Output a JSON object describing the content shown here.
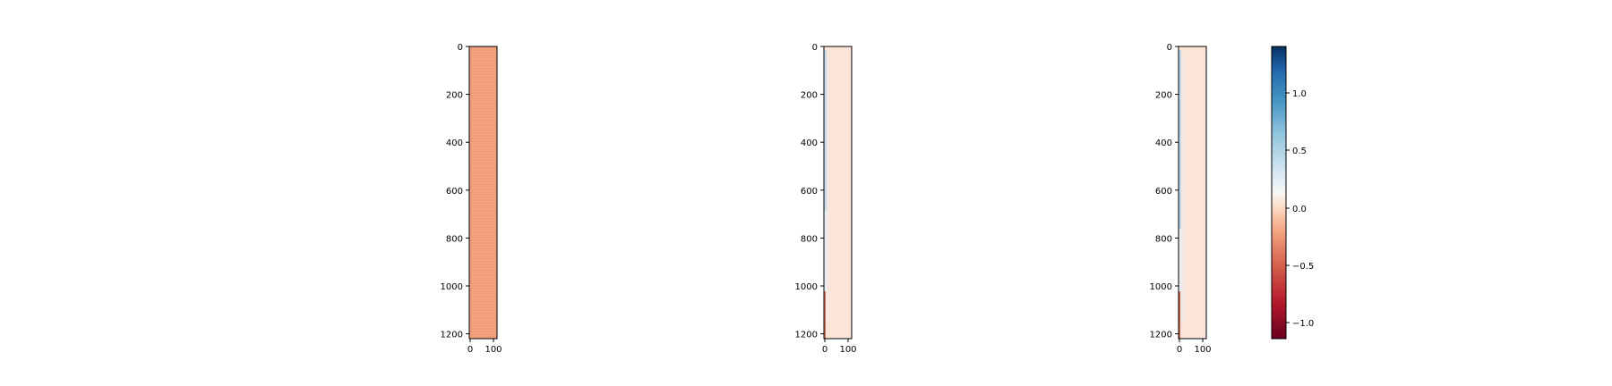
{
  "chart_data": [
    {
      "type": "heatmap",
      "panel": "left",
      "xlim": [
        0,
        120
      ],
      "ylim": [
        1220,
        0
      ],
      "xticks": [
        "0",
        "100"
      ],
      "yticks": [
        "0",
        "200",
        "400",
        "600",
        "800",
        "1000",
        "1200"
      ],
      "fill_value_estimate": -0.4,
      "description_values": "nearly uniform field with faint horizontal banding"
    },
    {
      "type": "heatmap",
      "panel": "middle",
      "xlim": [
        0,
        120
      ],
      "ylim": [
        1220,
        0
      ],
      "xticks": [
        "0",
        "100"
      ],
      "yticks": [
        "0",
        "200",
        "400",
        "600",
        "800",
        "1000",
        "1200"
      ],
      "fill_value_estimate": -0.08,
      "left_edge_values": [
        0.15,
        0.1,
        0.05,
        -0.2,
        -0.5
      ]
    },
    {
      "type": "heatmap",
      "panel": "right",
      "xlim": [
        0,
        120
      ],
      "ylim": [
        1220,
        0
      ],
      "xticks": [
        "0",
        "100"
      ],
      "yticks": [
        "0",
        "200",
        "400",
        "600",
        "800",
        "1000",
        "1200"
      ],
      "fill_value_estimate": -0.08,
      "left_edge_values": [
        0.2,
        0.1,
        0.05,
        -0.2,
        -0.6
      ]
    }
  ],
  "colorbar": {
    "colormap": "RdBu",
    "range": [
      -1.15,
      1.4
    ],
    "ticks": [
      "1.0",
      "0.5",
      "0.0",
      "−0.5",
      "−1.0"
    ],
    "tick_values": [
      1.0,
      0.5,
      0.0,
      -0.5,
      -1.0
    ]
  },
  "colors": {
    "left_fill": "#f19d7c",
    "middle_fill": "#fbe5d9",
    "right_fill": "#fbe5d9",
    "edge_blue": "#c7ddee",
    "edge_red": "#d8745e"
  }
}
